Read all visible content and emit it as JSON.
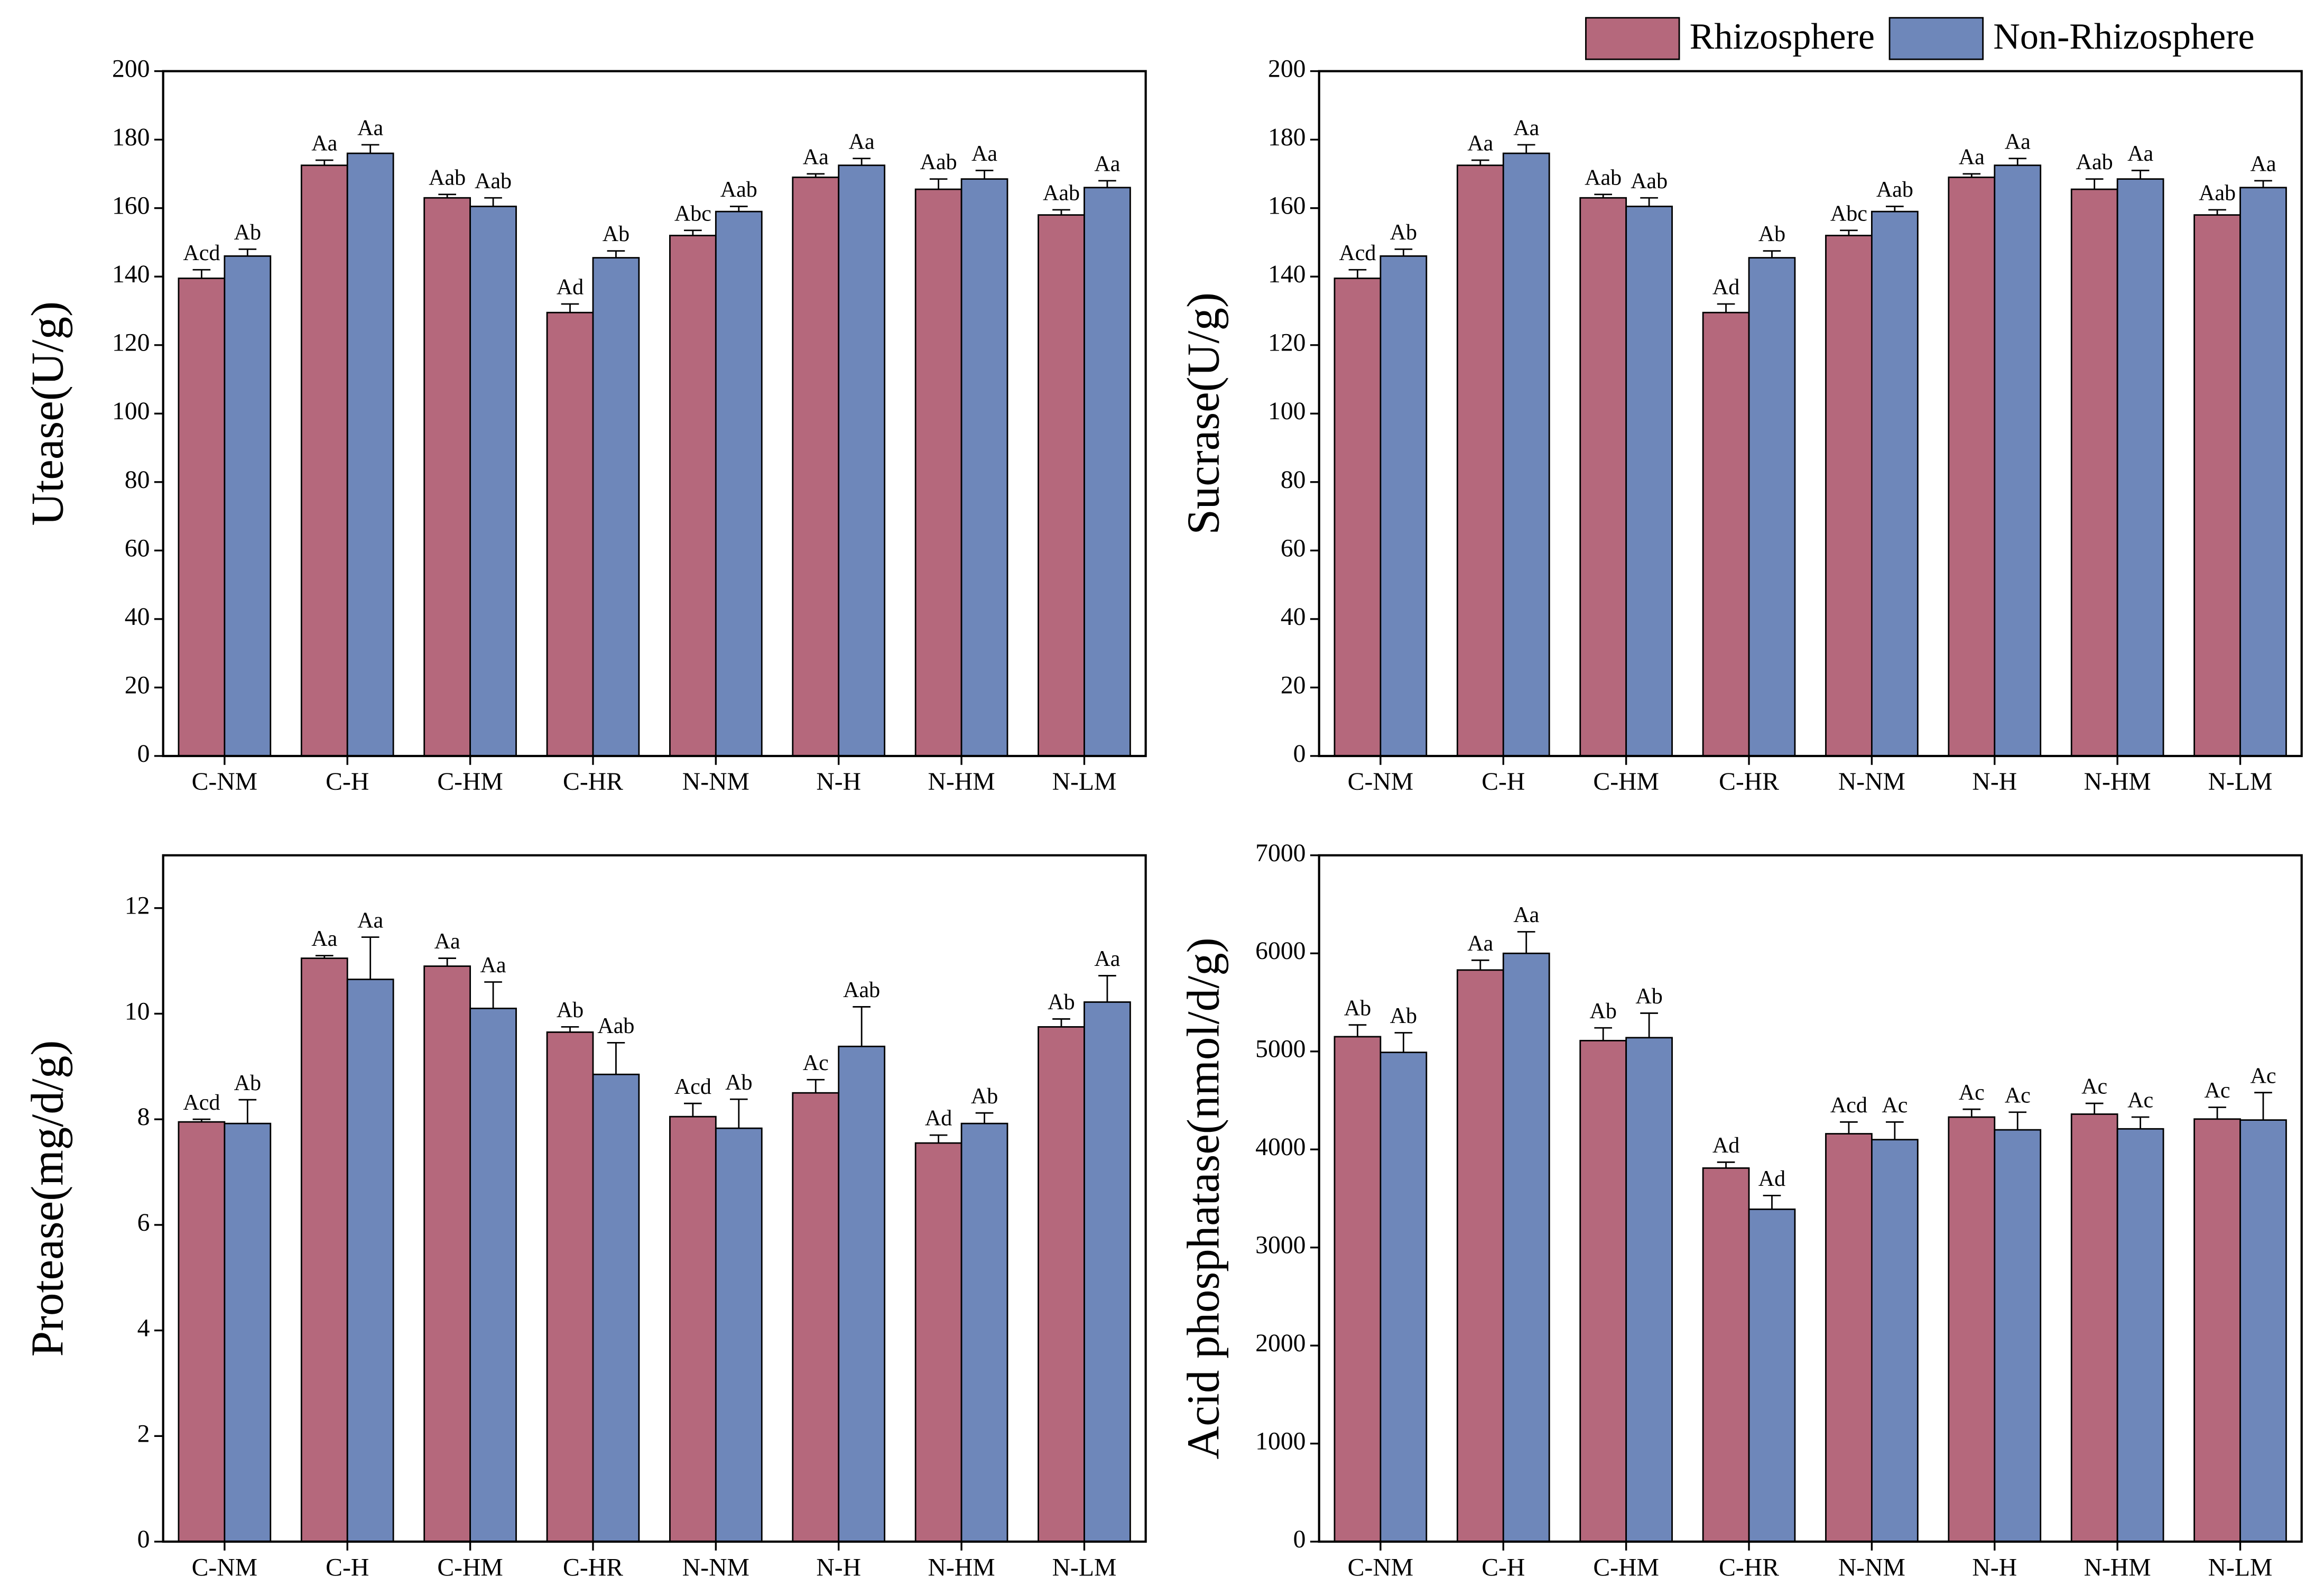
{
  "chart_data": [
    {
      "type": "bar",
      "y_label": "Utease(U/g)",
      "categories": [
        "C-NM",
        "C-H",
        "C-HM",
        "C-HR",
        "N-NM",
        "N-H",
        "N-HM",
        "N-LM"
      ],
      "ylim": [
        0,
        200
      ],
      "yticks": [
        0,
        20,
        40,
        60,
        80,
        100,
        120,
        140,
        160,
        180,
        200
      ],
      "legend": null,
      "series": [
        {
          "name": "Rhizosphere",
          "color": "#b5687c",
          "values": [
            139.5,
            172.5,
            163,
            129.5,
            152,
            169,
            165.5,
            158
          ],
          "errors": [
            2.5,
            1.5,
            1,
            2.5,
            1.5,
            1,
            3,
            1.5
          ],
          "letters": [
            "Acd",
            "Aa",
            "Aab",
            "Ad",
            "Abc",
            "Aa",
            "Aab",
            "Aab"
          ]
        },
        {
          "name": "Non-Rhizosphere",
          "color": "#6e87ba",
          "values": [
            146,
            176,
            160.5,
            145.5,
            159,
            172.5,
            168.5,
            166
          ],
          "errors": [
            2,
            2.5,
            2.5,
            2,
            1.5,
            2,
            2.5,
            2
          ],
          "letters": [
            "Ab",
            "Aa",
            "Aab",
            "Ab",
            "Aab",
            "Aa",
            "Aa",
            "Aa"
          ]
        }
      ]
    },
    {
      "type": "bar",
      "y_label": "Sucrase(U/g)",
      "categories": [
        "C-NM",
        "C-H",
        "C-HM",
        "C-HR",
        "N-NM",
        "N-H",
        "N-HM",
        "N-LM"
      ],
      "ylim": [
        0,
        200
      ],
      "yticks": [
        0,
        20,
        40,
        60,
        80,
        100,
        120,
        140,
        160,
        180,
        200
      ],
      "legend": "upper right",
      "series": [
        {
          "name": "Rhizosphere",
          "color": "#b5687c",
          "values": [
            139.5,
            172.5,
            163,
            129.5,
            152,
            169,
            165.5,
            158
          ],
          "errors": [
            2.5,
            1.5,
            1,
            2.5,
            1.5,
            1,
            3,
            1.5
          ],
          "letters": [
            "Acd",
            "Aa",
            "Aab",
            "Ad",
            "Abc",
            "Aa",
            "Aab",
            "Aab"
          ]
        },
        {
          "name": "Non-Rhizosphere",
          "color": "#6e87ba",
          "values": [
            146,
            176,
            160.5,
            145.5,
            159,
            172.5,
            168.5,
            166
          ],
          "errors": [
            2,
            2.5,
            2.5,
            2,
            1.5,
            2,
            2.5,
            2
          ],
          "letters": [
            "Ab",
            "Aa",
            "Aab",
            "Ab",
            "Aab",
            "Aa",
            "Aa",
            "Aa"
          ]
        }
      ]
    },
    {
      "type": "bar",
      "y_label": "Protease(mg/d/g)",
      "categories": [
        "C-NM",
        "C-H",
        "C-HM",
        "C-HR",
        "N-NM",
        "N-H",
        "N-HM",
        "N-LM"
      ],
      "ylim": [
        0,
        13
      ],
      "yticks": [
        0,
        2,
        4,
        6,
        8,
        10,
        12
      ],
      "legend": null,
      "series": [
        {
          "name": "Rhizosphere",
          "color": "#b5687c",
          "values": [
            7.95,
            11.05,
            10.9,
            9.65,
            8.05,
            8.5,
            7.55,
            9.75
          ],
          "errors": [
            0.05,
            0.05,
            0.15,
            0.1,
            0.25,
            0.25,
            0.15,
            0.15
          ],
          "letters": [
            "Acd",
            "Aa",
            "Aa",
            "Ab",
            "Acd",
            "Ac",
            "Ad",
            "Ab"
          ]
        },
        {
          "name": "Non-Rhizosphere",
          "color": "#6e87ba",
          "values": [
            7.92,
            10.65,
            10.1,
            8.85,
            7.83,
            9.38,
            7.92,
            10.22
          ],
          "errors": [
            0.45,
            0.8,
            0.5,
            0.6,
            0.55,
            0.75,
            0.2,
            0.5
          ],
          "letters": [
            "Ab",
            "Aa",
            "Aa",
            "Aab",
            "Ab",
            "Aab",
            "Ab",
            "Aa"
          ]
        }
      ]
    },
    {
      "type": "bar",
      "y_label": "Acid phosphatase(nmol/d/g)",
      "categories": [
        "C-NM",
        "C-H",
        "C-HM",
        "C-HR",
        "N-NM",
        "N-H",
        "N-HM",
        "N-LM"
      ],
      "ylim": [
        0,
        7000
      ],
      "yticks": [
        0,
        1000,
        2000,
        3000,
        4000,
        5000,
        6000,
        7000
      ],
      "legend": null,
      "series": [
        {
          "name": "Rhizosphere",
          "color": "#b5687c",
          "values": [
            5150,
            5830,
            5110,
            3810,
            4160,
            4330,
            4360,
            4310
          ],
          "errors": [
            120,
            100,
            130,
            60,
            120,
            80,
            110,
            120
          ],
          "letters": [
            "Ab",
            "Aa",
            "Ab",
            "Ad",
            "Acd",
            "Ac",
            "Ac",
            "Ac"
          ]
        },
        {
          "name": "Non-Rhizosphere",
          "color": "#6e87ba",
          "values": [
            4990,
            6000,
            5140,
            3390,
            4100,
            4200,
            4210,
            4300
          ],
          "errors": [
            200,
            220,
            250,
            140,
            180,
            180,
            120,
            280
          ],
          "letters": [
            "Ab",
            "Aa",
            "Ab",
            "Ad",
            "Ac",
            "Ac",
            "Ac",
            "Ac"
          ]
        }
      ]
    }
  ]
}
